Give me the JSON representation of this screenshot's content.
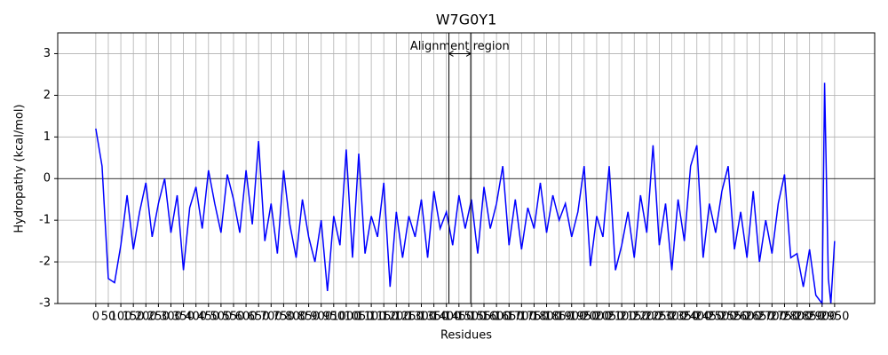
{
  "chart_data": {
    "type": "line",
    "title": "W7G0Y1",
    "x_label": "Residues",
    "y_label": "Hydropathy (kcal/mol)",
    "color": "#0000ff",
    "grid": true,
    "reference_line": 0,
    "annotation": {
      "text": "Alignment region",
      "region": [
        1410,
        1497
      ],
      "y": 3
    },
    "xlim": [
      -152,
      3110
    ],
    "ylim": [
      -3,
      3.5
    ],
    "yticks": [
      -3,
      -2,
      -1,
      0,
      1,
      2,
      3
    ],
    "xticks": [
      0,
      50,
      100,
      150,
      200,
      250,
      300,
      350,
      400,
      450,
      500,
      550,
      600,
      650,
      700,
      750,
      800,
      850,
      900,
      950,
      1000,
      1050,
      1100,
      1150,
      1200,
      1250,
      1300,
      1350,
      1400,
      1450,
      1500,
      1550,
      1600,
      1650,
      1700,
      1750,
      1800,
      1850,
      1900,
      1950,
      2000,
      2050,
      2100,
      2150,
      2200,
      2250,
      2300,
      2350,
      2400,
      2450,
      2500,
      2550,
      2600,
      2650,
      2700,
      2750,
      2800,
      2850,
      2900,
      2950
    ],
    "x": [
      0,
      25,
      50,
      75,
      100,
      125,
      150,
      175,
      200,
      225,
      250,
      275,
      300,
      325,
      350,
      375,
      400,
      425,
      450,
      475,
      500,
      525,
      550,
      575,
      600,
      625,
      650,
      675,
      700,
      725,
      750,
      775,
      800,
      825,
      850,
      875,
      900,
      925,
      950,
      975,
      1000,
      1025,
      1050,
      1075,
      1100,
      1125,
      1150,
      1175,
      1200,
      1225,
      1250,
      1275,
      1300,
      1325,
      1350,
      1375,
      1400,
      1425,
      1450,
      1475,
      1500,
      1525,
      1550,
      1575,
      1600,
      1625,
      1650,
      1675,
      1700,
      1725,
      1750,
      1775,
      1800,
      1825,
      1850,
      1875,
      1900,
      1925,
      1950,
      1975,
      2000,
      2025,
      2050,
      2075,
      2100,
      2125,
      2150,
      2175,
      2200,
      2225,
      2250,
      2275,
      2300,
      2325,
      2350,
      2375,
      2400,
      2425,
      2450,
      2475,
      2500,
      2525,
      2550,
      2575,
      2600,
      2625,
      2650,
      2675,
      2700,
      2725,
      2750,
      2775,
      2800,
      2825,
      2850,
      2875,
      2900,
      2910,
      2925,
      2935,
      2950
    ],
    "values": [
      1.2,
      0.3,
      -2.4,
      -2.5,
      -1.6,
      -0.4,
      -1.7,
      -0.8,
      -0.1,
      -1.4,
      -0.6,
      0.0,
      -1.3,
      -0.4,
      -2.2,
      -0.7,
      -0.2,
      -1.2,
      0.2,
      -0.6,
      -1.3,
      0.1,
      -0.5,
      -1.3,
      0.2,
      -1.1,
      0.9,
      -1.5,
      -0.6,
      -1.8,
      0.2,
      -1.1,
      -1.9,
      -0.5,
      -1.4,
      -2.0,
      -1.0,
      -2.7,
      -0.9,
      -1.6,
      0.7,
      -1.9,
      0.6,
      -1.8,
      -0.9,
      -1.4,
      -0.1,
      -2.6,
      -0.8,
      -1.9,
      -0.9,
      -1.4,
      -0.5,
      -1.9,
      -0.3,
      -1.2,
      -0.8,
      -1.6,
      -0.4,
      -1.2,
      -0.5,
      -1.8,
      -0.2,
      -1.2,
      -0.6,
      0.3,
      -1.6,
      -0.5,
      -1.7,
      -0.7,
      -1.2,
      -0.1,
      -1.3,
      -0.4,
      -1.0,
      -0.6,
      -1.4,
      -0.8,
      0.3,
      -2.1,
      -0.9,
      -1.4,
      0.3,
      -2.2,
      -1.6,
      -0.8,
      -1.9,
      -0.4,
      -1.3,
      0.8,
      -1.6,
      -0.6,
      -2.2,
      -0.5,
      -1.5,
      0.3,
      0.8,
      -1.9,
      -0.6,
      -1.3,
      -0.3,
      0.3,
      -1.7,
      -0.8,
      -1.9,
      -0.3,
      -2.0,
      -1.0,
      -1.8,
      -0.6,
      0.1,
      -1.9,
      -1.8,
      -2.6,
      -1.7,
      -2.8,
      -3.0,
      2.3,
      -2.4,
      -3.0,
      -1.5
    ]
  }
}
